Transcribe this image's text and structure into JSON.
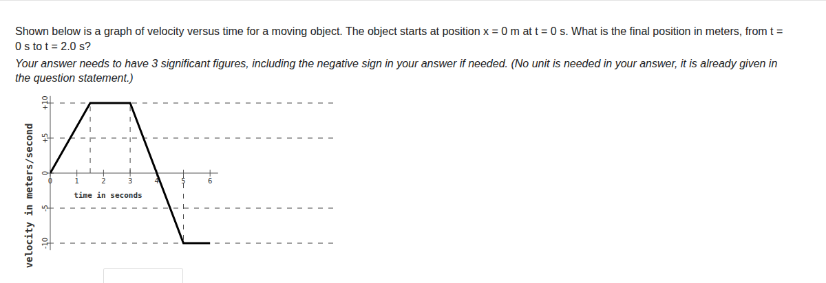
{
  "question": {
    "lines": [
      "Shown below is a graph of velocity versus time for a moving object. The object starts at position x = 0 m at t = 0 s. What is the final position in meters, from t =",
      "0 s to t = 2.0 s?"
    ],
    "instructions": [
      "Your answer needs to have 3 significant figures, including the negative sign in your answer if needed. (No unit is needed in your answer, it is already given in",
      "the question statement.)"
    ]
  },
  "chart_data": {
    "type": "line",
    "xlabel": "time in seconds",
    "ylabel": "velocity in meters/second",
    "x": [
      0,
      1.5,
      3,
      5,
      6
    ],
    "values": [
      0,
      10,
      10,
      -10,
      -10
    ],
    "color": "#000000",
    "xlim": [
      0,
      6.3
    ],
    "ylim": [
      -11,
      11
    ],
    "xticks": [
      0,
      1,
      2,
      3,
      4,
      5,
      6
    ],
    "yticks": [
      -10,
      -5,
      0,
      {
        "value": 5,
        "label": "+5"
      },
      {
        "value": 10,
        "label": "+10"
      }
    ],
    "grid": true
  }
}
